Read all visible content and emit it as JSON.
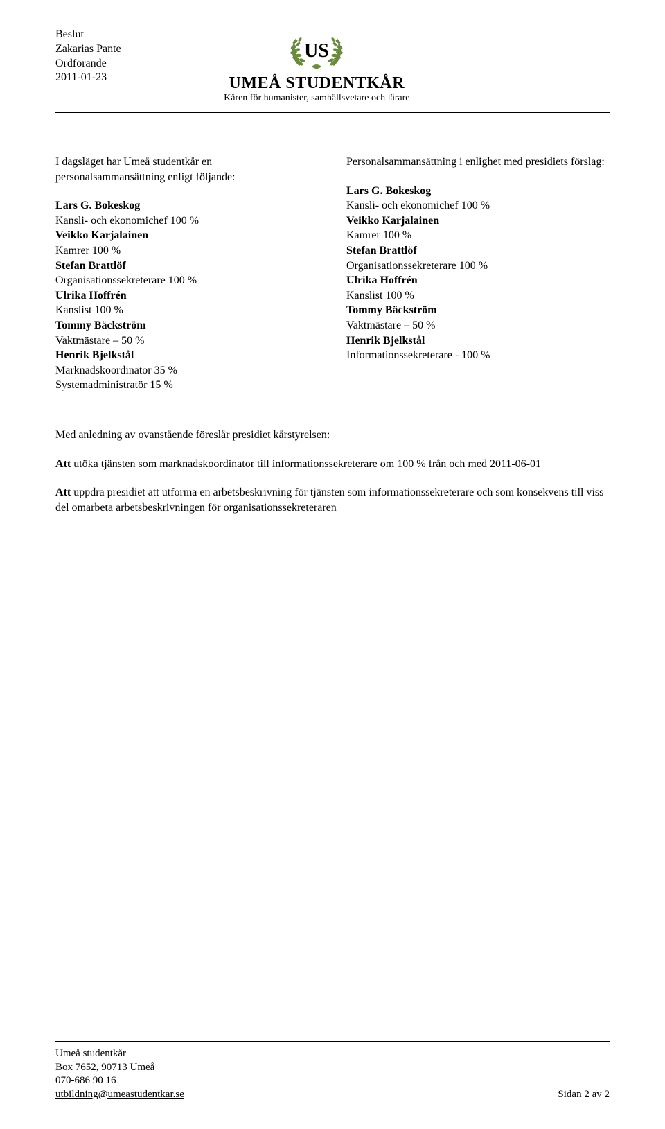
{
  "header": {
    "doc_type": "Beslut",
    "author": "Zakarias Pante",
    "role": "Ordförande",
    "date": "2011-01-23",
    "org_name": "UMEÅ STUDENTKÅR",
    "tagline": "Kåren för humanister, samhällsvetare och lärare"
  },
  "left": {
    "intro": "I dagsläget har Umeå studentkår en personalsammansättning enligt följande:",
    "people": [
      {
        "name": "Lars G. Bokeskog",
        "roles": [
          "Kansli- och ekonomichef 100 %"
        ]
      },
      {
        "name": "Veikko Karjalainen",
        "roles": [
          "Kamrer 100 %"
        ]
      },
      {
        "name": "Stefan Brattlöf",
        "roles": [
          "Organisationssekreterare 100 %"
        ]
      },
      {
        "name": "Ulrika Hoffrén",
        "roles": [
          "Kanslist 100 %"
        ]
      },
      {
        "name": "Tommy Bäckström",
        "roles": [
          "Vaktmästare – 50 %"
        ]
      },
      {
        "name": "Henrik Bjelkstål",
        "roles": [
          "Marknadskoordinator 35 %",
          "Systemadministratör 15 %"
        ]
      }
    ]
  },
  "right": {
    "intro": "Personalsammansättning i enlighet med presidiets förslag:",
    "people": [
      {
        "name": "Lars G. Bokeskog",
        "roles": [
          "Kansli- och ekonomichef 100 %"
        ]
      },
      {
        "name": "Veikko Karjalainen",
        "roles": [
          "Kamrer 100 %"
        ]
      },
      {
        "name": "Stefan Brattlöf",
        "roles": [
          "Organisationssekreterare 100 %"
        ]
      },
      {
        "name": "Ulrika Hoffrén",
        "roles": [
          "Kanslist 100 %"
        ]
      },
      {
        "name": "Tommy Bäckström",
        "roles": [
          "Vaktmästare – 50 %"
        ]
      },
      {
        "name": "Henrik Bjelkstål",
        "roles": [
          "Informationssekreterare - 100 %"
        ]
      }
    ]
  },
  "proposals": {
    "intro": "Med anledning av ovanstående föreslår presidiet kårstyrelsen:",
    "items": [
      {
        "lead": "Att",
        "text": " utöka tjänsten som marknadskoordinator till informationssekreterare om 100 % från och med 2011-06-01"
      },
      {
        "lead": "Att",
        "text": " uppdra presidiet att utforma en arbetsbeskrivning för tjänsten som informationssekreterare och som konsekvens till viss del omarbeta arbetsbeskrivningen för organisationssekreteraren"
      }
    ]
  },
  "footer": {
    "org": "Umeå studentkår",
    "address": "Box 7652, 90713 Umeå",
    "phone": "070-686 90 16",
    "email": "utbildning@umeastudentkar.se",
    "page": "Sidan 2 av 2"
  },
  "style": {
    "page_bg": "#ffffff",
    "text_color": "#000000",
    "wreath_fill": "#6a8a3f",
    "wreath_stroke": "#6a8a3f",
    "us_fill": "#000000",
    "body_font_size": 16,
    "org_name_font_size": 24,
    "tagline_font_size": 14,
    "footer_font_size": 15
  }
}
